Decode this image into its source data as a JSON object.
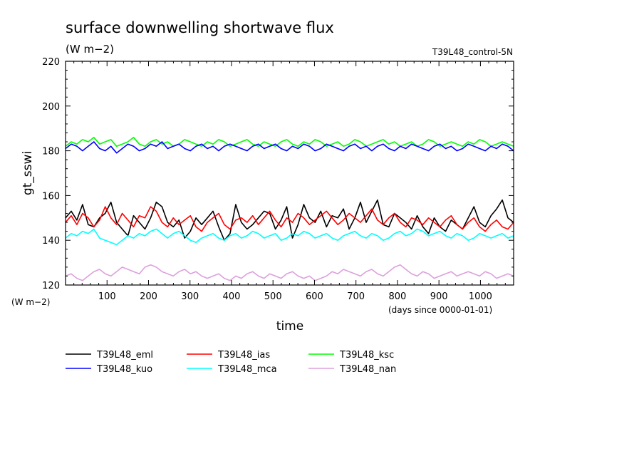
{
  "chart_data": {
    "type": "line",
    "title": "surface downwelling shortwave flux",
    "units": "(W m−2)",
    "run_label": "T39L48_control-5N",
    "ylabel": "gt_sswi",
    "y_units_label": "(W m−2)",
    "xlabel": "time",
    "x_units_label": "(days since 0000-01-01)",
    "xlim": [
      0,
      1080
    ],
    "ylim": [
      120,
      220
    ],
    "x_ticks": [
      100,
      200,
      300,
      400,
      500,
      600,
      700,
      800,
      900,
      1000
    ],
    "y_ticks": [
      120,
      140,
      160,
      180,
      200,
      220
    ],
    "grid": false,
    "legend_position": "bottom",
    "series": [
      {
        "name": "T39L48_eml",
        "color": "#000000",
        "values": [
          150,
          153,
          149,
          156,
          147,
          146,
          150,
          152,
          157,
          148,
          145,
          142,
          151,
          148,
          145,
          150,
          157,
          155,
          148,
          146,
          149,
          141,
          144,
          150,
          147,
          150,
          153,
          146,
          140,
          143,
          156,
          148,
          145,
          147,
          150,
          153,
          152,
          145,
          149,
          155,
          141,
          147,
          156,
          150,
          148,
          153,
          146,
          151,
          150,
          154,
          145,
          150,
          157,
          148,
          153,
          158,
          147,
          146,
          152,
          150,
          148,
          145,
          151,
          146,
          143,
          150,
          146,
          144,
          149,
          147,
          145,
          150,
          155,
          148,
          146,
          151,
          154,
          158,
          150,
          148
        ]
      },
      {
        "name": "T39L48_ias",
        "color": "#ff0000",
        "values": [
          148,
          151,
          147,
          152,
          150,
          146,
          149,
          155,
          150,
          147,
          152,
          149,
          146,
          151,
          150,
          155,
          153,
          148,
          146,
          150,
          147,
          149,
          151,
          146,
          144,
          148,
          150,
          152,
          147,
          145,
          149,
          150,
          148,
          151,
          147,
          150,
          153,
          149,
          146,
          150,
          148,
          152,
          150,
          147,
          149,
          151,
          153,
          150,
          147,
          149,
          152,
          150,
          148,
          151,
          154,
          149,
          147,
          150,
          152,
          148,
          146,
          150,
          149,
          147,
          150,
          148,
          146,
          149,
          151,
          147,
          145,
          148,
          150,
          146,
          144,
          147,
          149,
          146,
          145,
          148
        ]
      },
      {
        "name": "T39L48_ksc",
        "color": "#00ff00",
        "values": [
          182,
          184,
          183,
          185,
          184,
          186,
          183,
          184,
          185,
          182,
          183,
          184,
          186,
          183,
          182,
          184,
          185,
          183,
          184,
          182,
          183,
          185,
          184,
          183,
          182,
          184,
          183,
          185,
          184,
          182,
          183,
          184,
          185,
          183,
          182,
          184,
          183,
          182,
          184,
          185,
          183,
          182,
          184,
          183,
          185,
          184,
          182,
          183,
          184,
          182,
          183,
          185,
          184,
          182,
          183,
          184,
          185,
          183,
          184,
          182,
          183,
          184,
          182,
          183,
          185,
          184,
          182,
          183,
          184,
          183,
          182,
          184,
          183,
          185,
          184,
          182,
          183,
          184,
          183,
          182
        ]
      },
      {
        "name": "T39L48_kuo",
        "color": "#0000ff",
        "values": [
          181,
          183,
          182,
          180,
          182,
          184,
          181,
          180,
          182,
          179,
          181,
          183,
          182,
          180,
          181,
          183,
          182,
          184,
          181,
          182,
          183,
          181,
          180,
          182,
          183,
          181,
          182,
          180,
          182,
          183,
          182,
          181,
          180,
          182,
          183,
          181,
          182,
          183,
          181,
          180,
          182,
          181,
          183,
          182,
          180,
          181,
          183,
          182,
          181,
          180,
          182,
          183,
          181,
          182,
          180,
          182,
          183,
          181,
          180,
          182,
          181,
          183,
          182,
          181,
          180,
          182,
          183,
          181,
          182,
          180,
          181,
          183,
          182,
          181,
          180,
          182,
          181,
          183,
          182,
          180
        ]
      },
      {
        "name": "T39L48_mca",
        "color": "#00ffff",
        "values": [
          141,
          143,
          142,
          144,
          143,
          145,
          141,
          140,
          139,
          138,
          140,
          142,
          141,
          143,
          142,
          144,
          145,
          143,
          141,
          143,
          144,
          142,
          140,
          139,
          141,
          142,
          143,
          141,
          140,
          142,
          143,
          141,
          142,
          144,
          143,
          141,
          142,
          143,
          140,
          141,
          143,
          142,
          144,
          143,
          141,
          142,
          143,
          141,
          140,
          142,
          143,
          144,
          142,
          141,
          143,
          142,
          140,
          141,
          143,
          144,
          142,
          143,
          145,
          144,
          142,
          143,
          144,
          142,
          141,
          143,
          142,
          140,
          141,
          143,
          142,
          141,
          142,
          143,
          141,
          142
        ]
      },
      {
        "name": "T39L48_nan",
        "color": "#dda0dd",
        "values": [
          124,
          125,
          123,
          122,
          124,
          126,
          127,
          125,
          124,
          126,
          128,
          127,
          126,
          125,
          128,
          129,
          128,
          126,
          125,
          124,
          126,
          127,
          125,
          126,
          124,
          123,
          124,
          125,
          123,
          122,
          124,
          123,
          125,
          126,
          124,
          123,
          125,
          124,
          123,
          125,
          126,
          124,
          123,
          124,
          122,
          123,
          124,
          126,
          125,
          127,
          126,
          125,
          124,
          126,
          127,
          125,
          124,
          126,
          128,
          129,
          127,
          125,
          124,
          126,
          125,
          123,
          124,
          125,
          126,
          124,
          125,
          126,
          125,
          124,
          126,
          125,
          123,
          124,
          125,
          124
        ]
      }
    ]
  }
}
